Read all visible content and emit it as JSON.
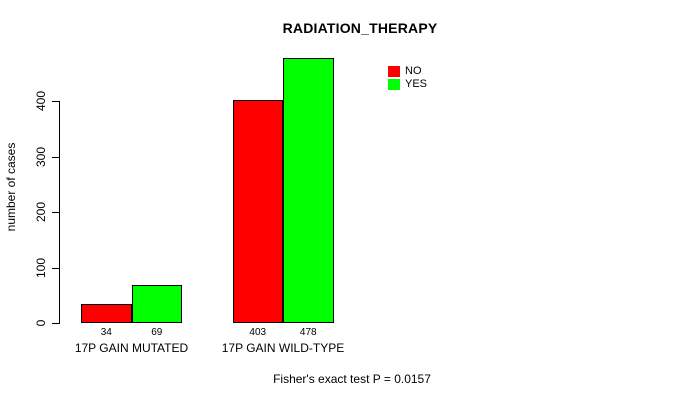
{
  "page": {
    "background": "#FFFFFF",
    "text_color": "#000000"
  },
  "chart_data": {
    "type": "bar",
    "title": "RADIATION_THERAPY",
    "xlabel": "",
    "ylabel": "number of cases",
    "categories": [
      "17P GAIN MUTATED",
      "17P GAIN WILD-TYPE"
    ],
    "series": [
      {
        "name": "NO",
        "color": "#FF0000",
        "values": [
          34,
          403
        ]
      },
      {
        "name": "YES",
        "color": "#00FF00",
        "values": [
          69,
          478
        ]
      }
    ],
    "bar_value_labels": [
      [
        "34",
        "403"
      ],
      [
        "69",
        "478"
      ]
    ],
    "ylim": [
      0,
      480
    ],
    "yticks": [
      0,
      100,
      200,
      300,
      400
    ],
    "ytick_labels": [
      "0",
      "100",
      "200",
      "300",
      "400"
    ],
    "grid": false,
    "bar_border_color": "#000000",
    "legend": {
      "position": "top-right",
      "entries": [
        {
          "label": "NO",
          "color": "#FF0000"
        },
        {
          "label": "YES",
          "color": "#00FF00"
        }
      ]
    },
    "annotation": "Fisher's exact test P = 0.0157"
  }
}
